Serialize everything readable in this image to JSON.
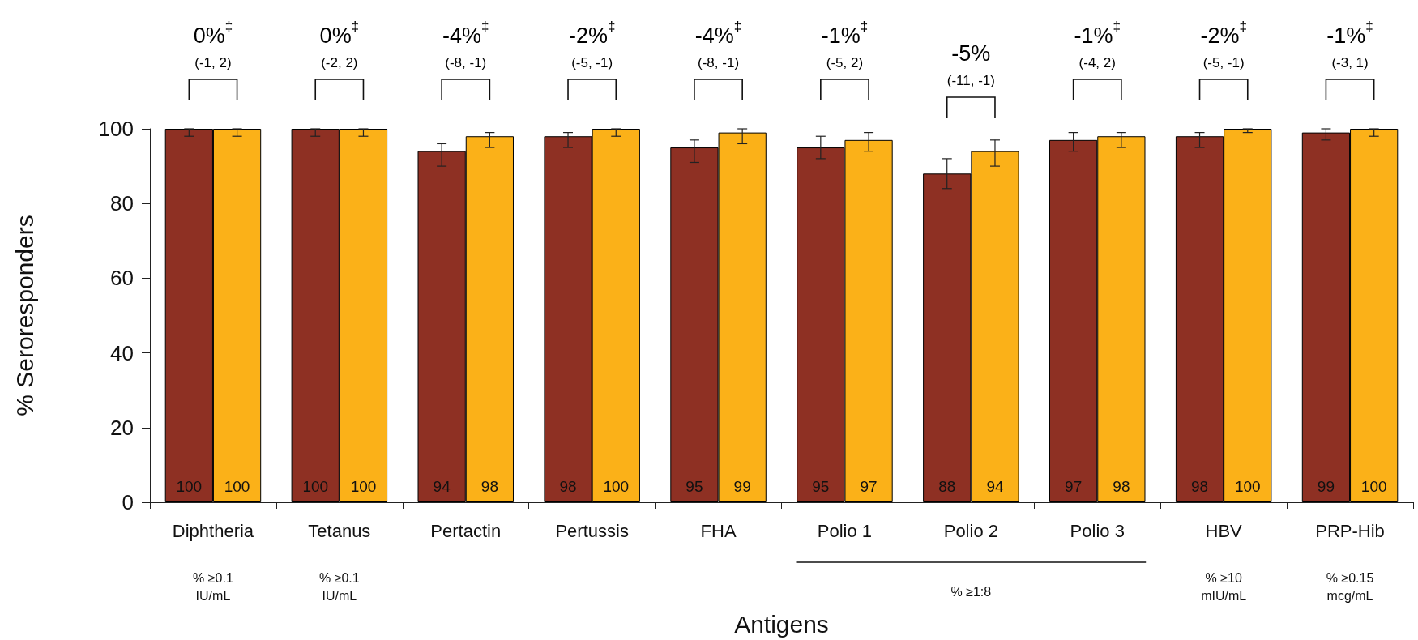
{
  "chart_data": {
    "type": "bar",
    "xlabel": "Antigens",
    "ylabel": "% Seroresponders",
    "categories": [
      "Diphtheria",
      "Tetanus",
      "Pertactin",
      "Pertussis",
      "FHA",
      "Polio 1",
      "Polio 2",
      "Polio 3",
      "HBV",
      "PRP-Hib"
    ],
    "series": [
      {
        "color": "#8e3023",
        "values": [
          100,
          100,
          94,
          98,
          95,
          95,
          88,
          97,
          98,
          99
        ],
        "errors": [
          [
            98,
            100
          ],
          [
            98,
            100
          ],
          [
            90,
            96
          ],
          [
            95,
            99
          ],
          [
            91,
            97
          ],
          [
            92,
            98
          ],
          [
            84,
            92
          ],
          [
            94,
            99
          ],
          [
            95,
            99
          ],
          [
            97,
            100
          ]
        ]
      },
      {
        "color": "#fbb118",
        "values": [
          100,
          100,
          98,
          100,
          99,
          97,
          94,
          98,
          100,
          100
        ],
        "errors": [
          [
            98,
            100
          ],
          [
            98,
            100
          ],
          [
            95,
            99
          ],
          [
            98,
            100
          ],
          [
            96,
            100
          ],
          [
            94,
            99
          ],
          [
            90,
            97
          ],
          [
            95,
            99
          ],
          [
            99,
            100
          ],
          [
            98,
            100
          ]
        ]
      }
    ],
    "ylim": [
      0,
      100
    ],
    "yticks": [
      0,
      20,
      40,
      60,
      80,
      100
    ],
    "grid": false,
    "data_labels": true,
    "annotations": [
      "0%$^{‡}$\n(-1, 2)",
      "0%$^{‡}$\n(-2, 2)",
      "-4%$^{‡}$\n(-8, -1)",
      "-2%$^{‡}$\n(-5, -1)",
      "-4%$^{‡}$\n(-8, -1)",
      "-1%$^{‡}$\n(-5, 2)",
      "-5%\n(-11, -1)",
      "-1%$^{‡}$\n(-4, 2)",
      "-2%$^{‡}$\n(-5, -1)",
      "-1%$^{‡}$\n(-3, 1)",
      "% ≥0.1\nIU/mL",
      "% ≥0.1\nIU/mL",
      "% ≥1:8",
      "% ≥10\nmIU/mL",
      "% ≥0.15\nmcg/mL"
    ]
  }
}
